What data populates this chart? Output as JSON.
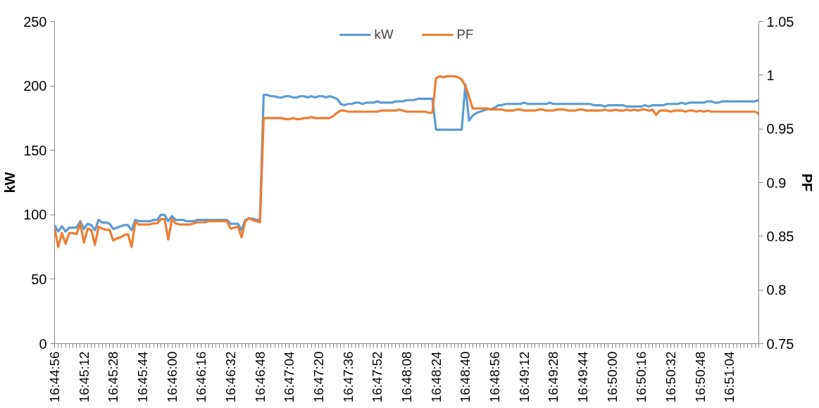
{
  "chart_data": {
    "type": "line",
    "xlabel": null,
    "ylabel": "kW",
    "y2label": "PF",
    "categories": [
      "16:44:56",
      null,
      null,
      null,
      null,
      null,
      null,
      null,
      "16:45:12",
      null,
      null,
      null,
      null,
      null,
      null,
      null,
      "16:45:28",
      null,
      null,
      null,
      null,
      null,
      null,
      null,
      "16:45:44",
      null,
      null,
      null,
      null,
      null,
      null,
      null,
      "16:46:00",
      null,
      null,
      null,
      null,
      null,
      null,
      null,
      "16:46:16",
      null,
      null,
      null,
      null,
      null,
      null,
      null,
      "16:46:32",
      null,
      null,
      null,
      null,
      null,
      null,
      null,
      "16:46:48",
      null,
      null,
      null,
      null,
      null,
      null,
      null,
      "16:47:04",
      null,
      null,
      null,
      null,
      null,
      null,
      null,
      "16:47:20",
      null,
      null,
      null,
      null,
      null,
      null,
      null,
      "16:47:36",
      null,
      null,
      null,
      null,
      null,
      null,
      null,
      "16:47:52",
      null,
      null,
      null,
      null,
      null,
      null,
      null,
      "16:48:08",
      null,
      null,
      null,
      null,
      null,
      null,
      null,
      "16:48:24",
      null,
      null,
      null,
      null,
      null,
      null,
      null,
      "16:48:40",
      null,
      null,
      null,
      null,
      null,
      null,
      null,
      "16:48:56",
      null,
      null,
      null,
      null,
      null,
      null,
      null,
      "16:49:12",
      null,
      null,
      null,
      null,
      null,
      null,
      null,
      "16:49:28",
      null,
      null,
      null,
      null,
      null,
      null,
      null,
      "16:49:44",
      null,
      null,
      null,
      null,
      null,
      null,
      null,
      "16:50:00",
      null,
      null,
      null,
      null,
      null,
      null,
      null,
      "16:50:16",
      null,
      null,
      null,
      null,
      null,
      null,
      null,
      "16:50:32",
      null,
      null,
      null,
      null,
      null,
      null,
      null,
      "16:50:48",
      null,
      null,
      null,
      null,
      null,
      null,
      null,
      "16:51:04",
      null,
      null,
      null,
      null,
      null,
      null,
      null,
      null
    ],
    "series": [
      {
        "name": "kW",
        "color": "#5b9bd5",
        "values": [
          92,
          87,
          91,
          87,
          90,
          90,
          90,
          95,
          89,
          93,
          92,
          88,
          96,
          94,
          94,
          93,
          89,
          90,
          91,
          92,
          92,
          88,
          96,
          95,
          95,
          95,
          95,
          96,
          96,
          100,
          100,
          95,
          99,
          96,
          96,
          96,
          95,
          95,
          95,
          96,
          96,
          96,
          96,
          96,
          96,
          96,
          96,
          96,
          93,
          93,
          93,
          88,
          96,
          97,
          97,
          96,
          96,
          193,
          193,
          192,
          192,
          191,
          191,
          192,
          192,
          191,
          191,
          192,
          192,
          191,
          192,
          191,
          192,
          192,
          191,
          192,
          191,
          190,
          186,
          185,
          186,
          186,
          187,
          187,
          186,
          187,
          187,
          187,
          188,
          187,
          187,
          187,
          187,
          188,
          188,
          188,
          189,
          189,
          189,
          190,
          190,
          190,
          190,
          190,
          166,
          166,
          166,
          166,
          166,
          166,
          166,
          166,
          201,
          173,
          177,
          179,
          180,
          181,
          182,
          182,
          183,
          185,
          185,
          186,
          186,
          186,
          186,
          186,
          187,
          186,
          186,
          186,
          186,
          186,
          186,
          187,
          186,
          186,
          186,
          186,
          186,
          186,
          186,
          186,
          186,
          186,
          186,
          185,
          185,
          185,
          184,
          185,
          185,
          185,
          185,
          185,
          184,
          184,
          184,
          184,
          184,
          185,
          184,
          185,
          185,
          185,
          185,
          186,
          186,
          186,
          186,
          187,
          186,
          187,
          187,
          187,
          187,
          187,
          188,
          188,
          187,
          187,
          188,
          188,
          188,
          188,
          188,
          188,
          188,
          188,
          188,
          188,
          189
        ]
      },
      {
        "name": "PF",
        "color": "#ed7d31",
        "axis": "y2",
        "values": [
          0.858,
          0.84,
          0.853,
          0.843,
          0.853,
          0.853,
          0.852,
          0.862,
          0.844,
          0.857,
          0.856,
          0.842,
          0.859,
          0.857,
          0.856,
          0.856,
          0.846,
          0.848,
          0.849,
          0.851,
          0.852,
          0.84,
          0.863,
          0.861,
          0.861,
          0.861,
          0.861,
          0.862,
          0.862,
          0.866,
          0.866,
          0.847,
          0.866,
          0.862,
          0.861,
          0.861,
          0.861,
          0.861,
          0.862,
          0.863,
          0.863,
          0.863,
          0.864,
          0.864,
          0.864,
          0.864,
          0.864,
          0.864,
          0.857,
          0.858,
          0.859,
          0.849,
          0.864,
          0.867,
          0.865,
          0.864,
          0.863,
          0.96,
          0.96,
          0.96,
          0.96,
          0.96,
          0.96,
          0.959,
          0.959,
          0.96,
          0.959,
          0.959,
          0.96,
          0.96,
          0.961,
          0.96,
          0.96,
          0.96,
          0.96,
          0.96,
          0.962,
          0.965,
          0.967,
          0.967,
          0.966,
          0.966,
          0.966,
          0.966,
          0.966,
          0.966,
          0.966,
          0.966,
          0.966,
          0.967,
          0.967,
          0.967,
          0.967,
          0.967,
          0.968,
          0.967,
          0.966,
          0.966,
          0.966,
          0.966,
          0.966,
          0.966,
          0.965,
          0.965,
          0.997,
          0.999,
          0.998,
          0.999,
          0.999,
          0.999,
          0.998,
          0.996,
          0.99,
          0.98,
          0.969,
          0.969,
          0.969,
          0.969,
          0.969,
          0.968,
          0.968,
          0.968,
          0.968,
          0.967,
          0.967,
          0.967,
          0.968,
          0.968,
          0.967,
          0.967,
          0.967,
          0.967,
          0.968,
          0.968,
          0.967,
          0.967,
          0.967,
          0.968,
          0.968,
          0.968,
          0.967,
          0.967,
          0.967,
          0.968,
          0.968,
          0.967,
          0.967,
          0.967,
          0.967,
          0.967,
          0.968,
          0.967,
          0.967,
          0.968,
          0.967,
          0.967,
          0.968,
          0.967,
          0.968,
          0.967,
          0.968,
          0.968,
          0.967,
          0.968,
          0.963,
          0.967,
          0.967,
          0.967,
          0.966,
          0.967,
          0.967,
          0.967,
          0.966,
          0.967,
          0.967,
          0.966,
          0.967,
          0.966,
          0.967,
          0.966,
          0.966,
          0.966,
          0.966,
          0.966,
          0.966,
          0.966,
          0.966,
          0.966,
          0.966,
          0.966,
          0.966,
          0.966,
          0.964
        ]
      }
    ],
    "ylim": [
      0,
      250
    ],
    "yticks": [
      0,
      50,
      100,
      150,
      200,
      250
    ],
    "y2lim": [
      0.75,
      1.05
    ],
    "y2ticks": [
      0.75,
      0.8,
      0.85,
      0.9,
      0.95,
      1,
      1.05
    ],
    "grid": false,
    "legend": "top",
    "marker": "none",
    "line_style": "solid"
  }
}
